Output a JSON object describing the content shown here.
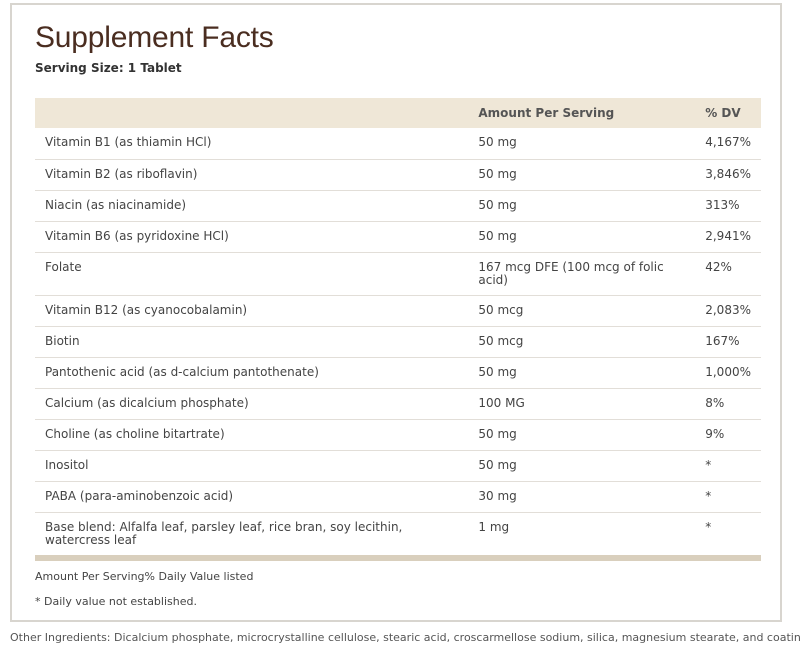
{
  "title": "Supplement Facts",
  "serving_size": "Serving Size: 1 Tablet",
  "columns": {
    "nutrient": "",
    "amount": "Amount Per Serving",
    "dv": "% DV"
  },
  "rows": [
    {
      "nutrient": "Vitamin B1 (as thiamin HCl)",
      "amount": "50 mg",
      "dv": "4,167%"
    },
    {
      "nutrient": "Vitamin B2 (as riboflavin)",
      "amount": "50 mg",
      "dv": "3,846%"
    },
    {
      "nutrient": "Niacin (as niacinamide)",
      "amount": "50 mg",
      "dv": "313%"
    },
    {
      "nutrient": "Vitamin B6 (as pyridoxine HCl)",
      "amount": "50 mg",
      "dv": "2,941%"
    },
    {
      "nutrient": "Folate",
      "amount": "167 mcg DFE (100 mcg of folic acid)",
      "dv": "42%"
    },
    {
      "nutrient": "Vitamin B12 (as cyanocobalamin)",
      "amount": "50 mcg",
      "dv": "2,083%"
    },
    {
      "nutrient": "Biotin",
      "amount": "50 mcg",
      "dv": "167%"
    },
    {
      "nutrient": "Pantothenic acid (as d-calcium pantothenate)",
      "amount": "50 mg",
      "dv": "1,000%"
    },
    {
      "nutrient": "Calcium (as dicalcium phosphate)",
      "amount": "100 MG",
      "dv": "8%"
    },
    {
      "nutrient": "Choline (as choline bitartrate)",
      "amount": "50 mg",
      "dv": "9%"
    },
    {
      "nutrient": "Inositol",
      "amount": "50 mg",
      "dv": "*"
    },
    {
      "nutrient": "PABA (para-aminobenzoic acid)",
      "amount": "30 mg",
      "dv": "*"
    },
    {
      "nutrient": "Base blend: Alfalfa leaf, parsley leaf, rice bran, soy lecithin, watercress leaf",
      "amount": "1 mg",
      "dv": "*"
    }
  ],
  "footnote_dv": "Amount Per Serving% Daily Value listed",
  "footnote_star": "* Daily value not established.",
  "other_ingredients": "Other Ingredients: Dicalcium phosphate, microcrystalline cellulose, stearic acid, croscarmellose sodium, silica, magnesium stearate, and coating"
}
